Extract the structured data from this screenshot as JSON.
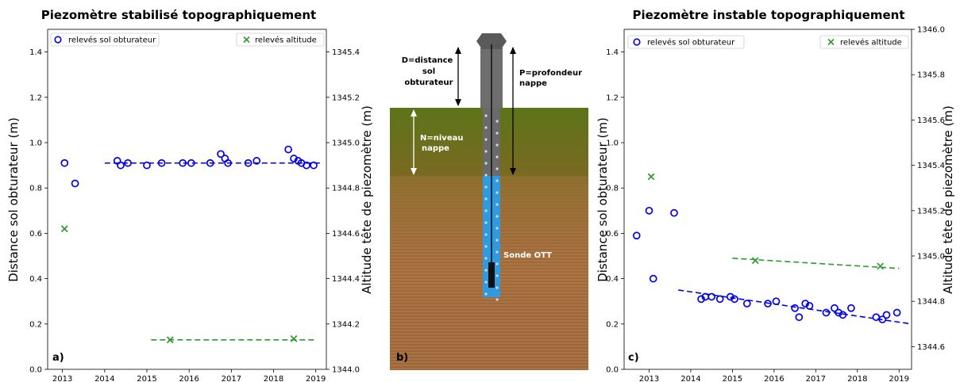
{
  "chart_data": [
    {
      "type": "scatter",
      "panel": "a)",
      "title": "Piezomètre stabilisé topographiquement",
      "ylabel": "Distance sol obturateur (m)",
      "y2label": "Altitude tête de piezomètre (m)",
      "xlim": [
        2012.65,
        2019.25
      ],
      "ylim": [
        0.0,
        1.5
      ],
      "y2lim": [
        1344.0,
        1345.5
      ],
      "xticks": [
        2013,
        2014,
        2015,
        2016,
        2017,
        2018,
        2019
      ],
      "yticks": [
        0.0,
        0.2,
        0.4,
        0.6,
        0.8,
        1.0,
        1.2,
        1.4
      ],
      "y2ticks": [
        1344.0,
        1344.2,
        1344.4,
        1344.6,
        1344.8,
        1345.0,
        1345.2,
        1345.4
      ],
      "legend": [
        "relevés sol obturateur",
        "relevés altitude"
      ],
      "series": [
        {
          "name": "relevés sol obturateur",
          "color": "#0000ee",
          "marker": "circle",
          "axis": "left",
          "x": [
            2013.05,
            2013.3,
            2014.3,
            2014.38,
            2014.55,
            2015.0,
            2015.35,
            2015.85,
            2016.05,
            2016.5,
            2016.75,
            2016.85,
            2016.92,
            2017.4,
            2017.6,
            2018.35,
            2018.48,
            2018.58,
            2018.66,
            2018.78,
            2018.95
          ],
          "y": [
            0.91,
            0.82,
            0.92,
            0.9,
            0.91,
            0.9,
            0.91,
            0.91,
            0.91,
            0.91,
            0.95,
            0.93,
            0.91,
            0.91,
            0.92,
            0.97,
            0.93,
            0.92,
            0.91,
            0.9,
            0.9
          ]
        },
        {
          "name": "relevés altitude",
          "color": "#2e9a2e",
          "marker": "x",
          "axis": "right",
          "x": [
            2013.05,
            2015.55,
            2018.48
          ],
          "y": [
            1344.62,
            1344.13,
            1344.135
          ]
        }
      ],
      "trendlines": [
        {
          "color": "#0000ee",
          "axis": "left",
          "x": [
            2014.0,
            2019.1
          ],
          "y": [
            0.91,
            0.91
          ]
        },
        {
          "color": "#2e9a2e",
          "axis": "right",
          "x": [
            2015.1,
            2019.0
          ],
          "y": [
            1344.13,
            1344.13
          ]
        }
      ]
    },
    {
      "type": "diagram",
      "panel": "b)",
      "labels": {
        "d": [
          "D=distance",
          "sol",
          "obturateur"
        ],
        "p": [
          "P=profondeur",
          "nappe"
        ],
        "n": [
          "N=niveau",
          "nappe"
        ],
        "sonde": "Sonde OTT"
      },
      "colors": {
        "soil_top": "#5c7418",
        "soil_mid": "#8a6f2c",
        "soil_bottom": "#a86a3e",
        "water": "#2f9ae0",
        "pipe": "#6a6a6a"
      }
    },
    {
      "type": "scatter",
      "panel": "c)",
      "title": "Piezomètre instable topographiquement",
      "ylabel": "Distance sol obturateur (m)",
      "y2label": "Altitude tête de piezomètre (m)",
      "xlim": [
        2012.4,
        2019.3
      ],
      "ylim": [
        0.0,
        1.5
      ],
      "y2lim": [
        1344.5,
        1346.0
      ],
      "xticks": [
        2013,
        2014,
        2015,
        2016,
        2017,
        2018,
        2019
      ],
      "yticks": [
        0.0,
        0.2,
        0.4,
        0.6,
        0.8,
        1.0,
        1.2,
        1.4
      ],
      "y2ticks": [
        1344.6,
        1344.8,
        1345.0,
        1345.2,
        1345.4,
        1345.6,
        1345.8,
        1346.0
      ],
      "legend": [
        "relevés sol obturateur",
        "relevés altitude"
      ],
      "series": [
        {
          "name": "relevés sol obturateur",
          "color": "#0000ee",
          "marker": "circle",
          "axis": "left",
          "x": [
            2012.7,
            2013.0,
            2013.1,
            2013.6,
            2014.25,
            2014.35,
            2014.5,
            2014.7,
            2014.95,
            2015.05,
            2015.35,
            2015.85,
            2016.05,
            2016.5,
            2016.6,
            2016.75,
            2016.85,
            2017.25,
            2017.45,
            2017.55,
            2017.65,
            2017.85,
            2018.45,
            2018.6,
            2018.7,
            2018.95
          ],
          "y": [
            0.59,
            0.7,
            0.4,
            0.69,
            0.31,
            0.32,
            0.32,
            0.31,
            0.32,
            0.31,
            0.29,
            0.29,
            0.3,
            0.27,
            0.23,
            0.29,
            0.28,
            0.25,
            0.27,
            0.25,
            0.24,
            0.27,
            0.23,
            0.22,
            0.24,
            0.25
          ]
        },
        {
          "name": "relevés altitude",
          "color": "#2e9a2e",
          "marker": "x",
          "axis": "right",
          "x": [
            2013.05,
            2015.55,
            2018.55
          ],
          "y": [
            1345.35,
            1344.98,
            1344.955
          ]
        }
      ],
      "trendlines": [
        {
          "color": "#0000ee",
          "axis": "left",
          "x": [
            2013.7,
            2019.3
          ],
          "y": [
            0.35,
            0.2
          ]
        },
        {
          "color": "#2e9a2e",
          "axis": "right",
          "x": [
            2015.0,
            2019.0
          ],
          "y": [
            1344.99,
            1344.945
          ]
        }
      ]
    }
  ]
}
